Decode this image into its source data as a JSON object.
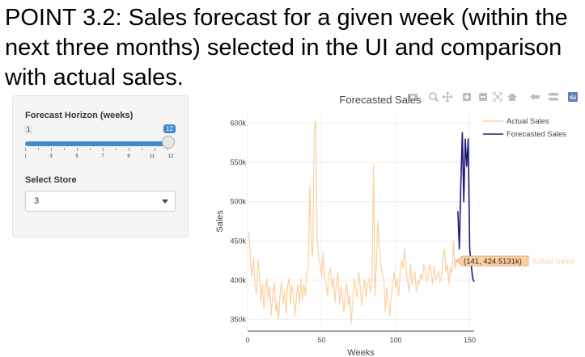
{
  "headline": "POINT 3.2: Sales forecast for a given week (within the next three months) selected in the UI and comparison with actual sales.",
  "sidebar": {
    "horizon_label": "Forecast Horizon (weeks)",
    "slider": {
      "min": 1,
      "max": 12,
      "value": 12,
      "min_label": "1",
      "value_label": "12",
      "tick_labels": [
        "1",
        "3",
        "5",
        "7",
        "9",
        "11",
        "12"
      ]
    },
    "store_label": "Select Store",
    "store_value": "3"
  },
  "colors": {
    "actual": "#fdd0a2",
    "forecast": "#1f1a7a",
    "slider": "#428bca"
  },
  "modebar_icons": [
    "camera-icon",
    "zoom-icon",
    "pan-icon",
    "zoom-in-icon",
    "zoom-out-icon",
    "autoscale-icon",
    "reset-axes-icon",
    "spike-lines-icon",
    "hover-closest-icon",
    "hover-compare-icon",
    "plotly-logo-icon"
  ],
  "tooltip": {
    "text": "(141, 424.5131k)",
    "series": "Actual Sales"
  },
  "chart_data": {
    "type": "line",
    "title": "Forecasted Sales",
    "xlabel": "Weeks",
    "ylabel": "Sales",
    "xlim": [
      0,
      153
    ],
    "ylim": [
      335000,
      615000
    ],
    "xticks": [
      0,
      50,
      100,
      150
    ],
    "yticks": [
      350000,
      400000,
      450000,
      500000,
      550000,
      600000
    ],
    "ytick_labels": [
      "350k",
      "400k",
      "450k",
      "500k",
      "550k",
      "600k"
    ],
    "legend_position": "top-right",
    "series": [
      {
        "name": "Actual Sales",
        "x": [
          1,
          2,
          3,
          4,
          5,
          6,
          7,
          8,
          9,
          10,
          11,
          12,
          13,
          14,
          15,
          16,
          17,
          18,
          19,
          20,
          21,
          22,
          23,
          24,
          25,
          26,
          27,
          28,
          29,
          30,
          31,
          32,
          33,
          34,
          35,
          36,
          37,
          38,
          39,
          40,
          41,
          42,
          43,
          44,
          45,
          46,
          47,
          48,
          49,
          50,
          51,
          52,
          53,
          54,
          55,
          56,
          57,
          58,
          59,
          60,
          61,
          62,
          63,
          64,
          65,
          66,
          67,
          68,
          69,
          70,
          71,
          72,
          73,
          74,
          75,
          76,
          77,
          78,
          79,
          80,
          81,
          82,
          83,
          84,
          85,
          86,
          87,
          88,
          89,
          90,
          91,
          92,
          93,
          94,
          95,
          96,
          97,
          98,
          99,
          100,
          101,
          102,
          103,
          104,
          105,
          106,
          107,
          108,
          109,
          110,
          111,
          112,
          113,
          114,
          115,
          116,
          117,
          118,
          119,
          120,
          121,
          122,
          123,
          124,
          125,
          126,
          127,
          128,
          129,
          130,
          131,
          132,
          133,
          134,
          135,
          136,
          137,
          138,
          139,
          140,
          141
        ],
        "y": [
          461000,
          420000,
          405000,
          428000,
          395000,
          382000,
          425000,
          410000,
          372000,
          395000,
          364000,
          388000,
          402000,
          375000,
          392000,
          355000,
          382000,
          398000,
          360000,
          372000,
          350000,
          384000,
          398000,
          370000,
          385000,
          358000,
          392000,
          402000,
          368000,
          394000,
          380000,
          355000,
          378000,
          395000,
          370000,
          402000,
          375000,
          395000,
          380000,
          410000,
          415000,
          520000,
          445000,
          430000,
          590000,
          605000,
          455000,
          430000,
          420000,
          405000,
          435000,
          400000,
          395000,
          380000,
          410000,
          415000,
          390000,
          402000,
          372000,
          395000,
          410000,
          368000,
          392000,
          380000,
          360000,
          385000,
          395000,
          368000,
          380000,
          345000,
          372000,
          402000,
          388000,
          378000,
          410000,
          392000,
          368000,
          385000,
          400000,
          378000,
          395000,
          402000,
          385000,
          398000,
          548000,
          380000,
          420000,
          475000,
          445000,
          420000,
          408000,
          400000,
          360000,
          390000,
          375000,
          355000,
          380000,
          395000,
          410000,
          390000,
          402000,
          380000,
          410000,
          425000,
          415000,
          440000,
          415000,
          400000,
          385000,
          420000,
          395000,
          405000,
          410000,
          385000,
          400000,
          395000,
          408000,
          400000,
          420000,
          412000,
          398000,
          405000,
          420000,
          410000,
          395000,
          418000,
          400000,
          405000,
          412000,
          398000,
          405000,
          430000,
          440000,
          410000,
          420000,
          395000,
          415000,
          410000,
          450000,
          415000,
          424513
        ]
      },
      {
        "name": "Forecasted Sales",
        "x": [
          142,
          143,
          144,
          145,
          146,
          147,
          148,
          149,
          150,
          151,
          152,
          153
        ],
        "y": [
          488000,
          440000,
          520000,
          588000,
          500000,
          580000,
          545000,
          580000,
          440000,
          420000,
          402000,
          398000
        ]
      }
    ]
  }
}
